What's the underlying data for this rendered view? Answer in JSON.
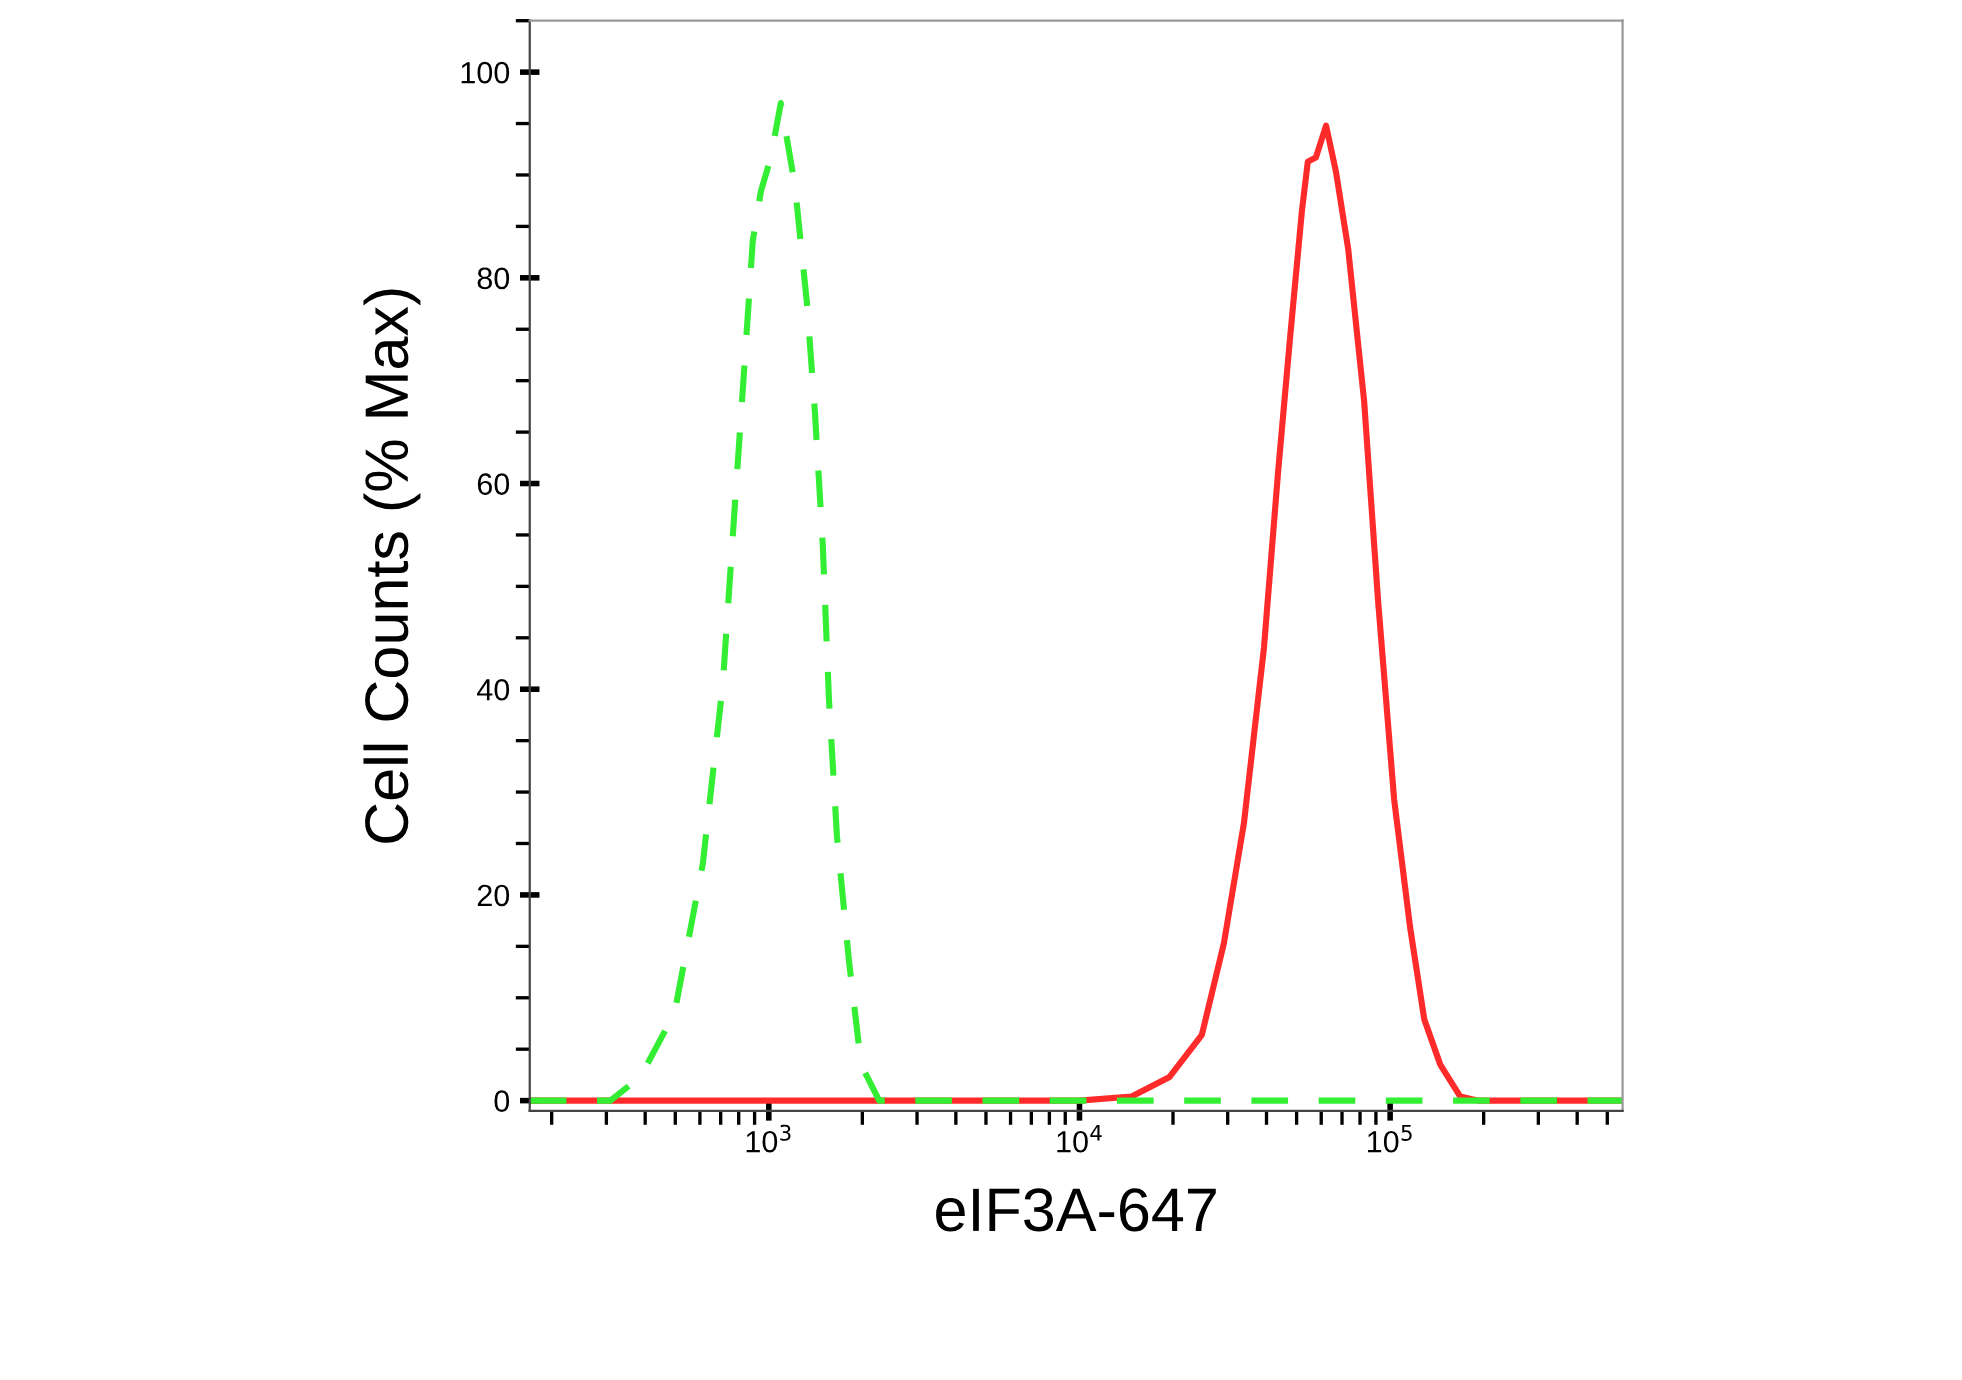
{
  "chart_data": {
    "type": "line",
    "xlabel": "eIF3A-647",
    "ylabel": "Cell Counts (% Max)",
    "log": "x",
    "grid": false,
    "legend": false,
    "marker": "none",
    "xlim": [
      170,
      560000
    ],
    "xticks": [
      {
        "value": 1000,
        "label": "10$^{3}$"
      },
      {
        "value": 10000,
        "label": "10$^{4}$"
      },
      {
        "value": 100000,
        "label": "10$^{5}$"
      }
    ],
    "ylim": [
      -1,
      105
    ],
    "yticks": [
      0,
      20,
      40,
      60,
      80,
      100
    ],
    "series": [
      {
        "color": "#ff2a2a",
        "line_style": "solid",
        "x": [
          170,
          10000,
          14720,
          19500,
          24770,
          29170,
          33840,
          39240,
          43550,
          47570,
          52000,
          54330,
          57680,
          62200,
          66950,
          73280,
          82470,
          91450,
          103000,
          116000,
          128800,
          145000,
          168200,
          192400,
          560000
        ],
        "values": [
          0,
          0,
          0.4,
          2.3,
          6.4,
          15.3,
          27,
          44,
          61,
          74,
          86.5,
          91.3,
          91.7,
          94.8,
          90.3,
          82.8,
          68,
          48.6,
          29.3,
          16.8,
          7.9,
          3.5,
          0.4,
          0,
          0
        ]
      },
      {
        "color": "#33ee33",
        "line_style": "dashed",
        "x": [
          170,
          309,
          386,
          497,
          613,
          711,
          766,
          837,
          888,
          943,
          1015,
          1093,
          1213,
          1326,
          1407,
          1492,
          1562,
          1657,
          1810,
          1982,
          2267,
          560000
        ],
        "values": [
          0,
          0,
          2.3,
          8.5,
          23,
          40.5,
          55,
          72,
          83.6,
          88.4,
          91.7,
          97,
          89,
          77.6,
          67,
          54,
          39,
          25.7,
          13.7,
          3.5,
          0,
          0
        ]
      }
    ]
  }
}
